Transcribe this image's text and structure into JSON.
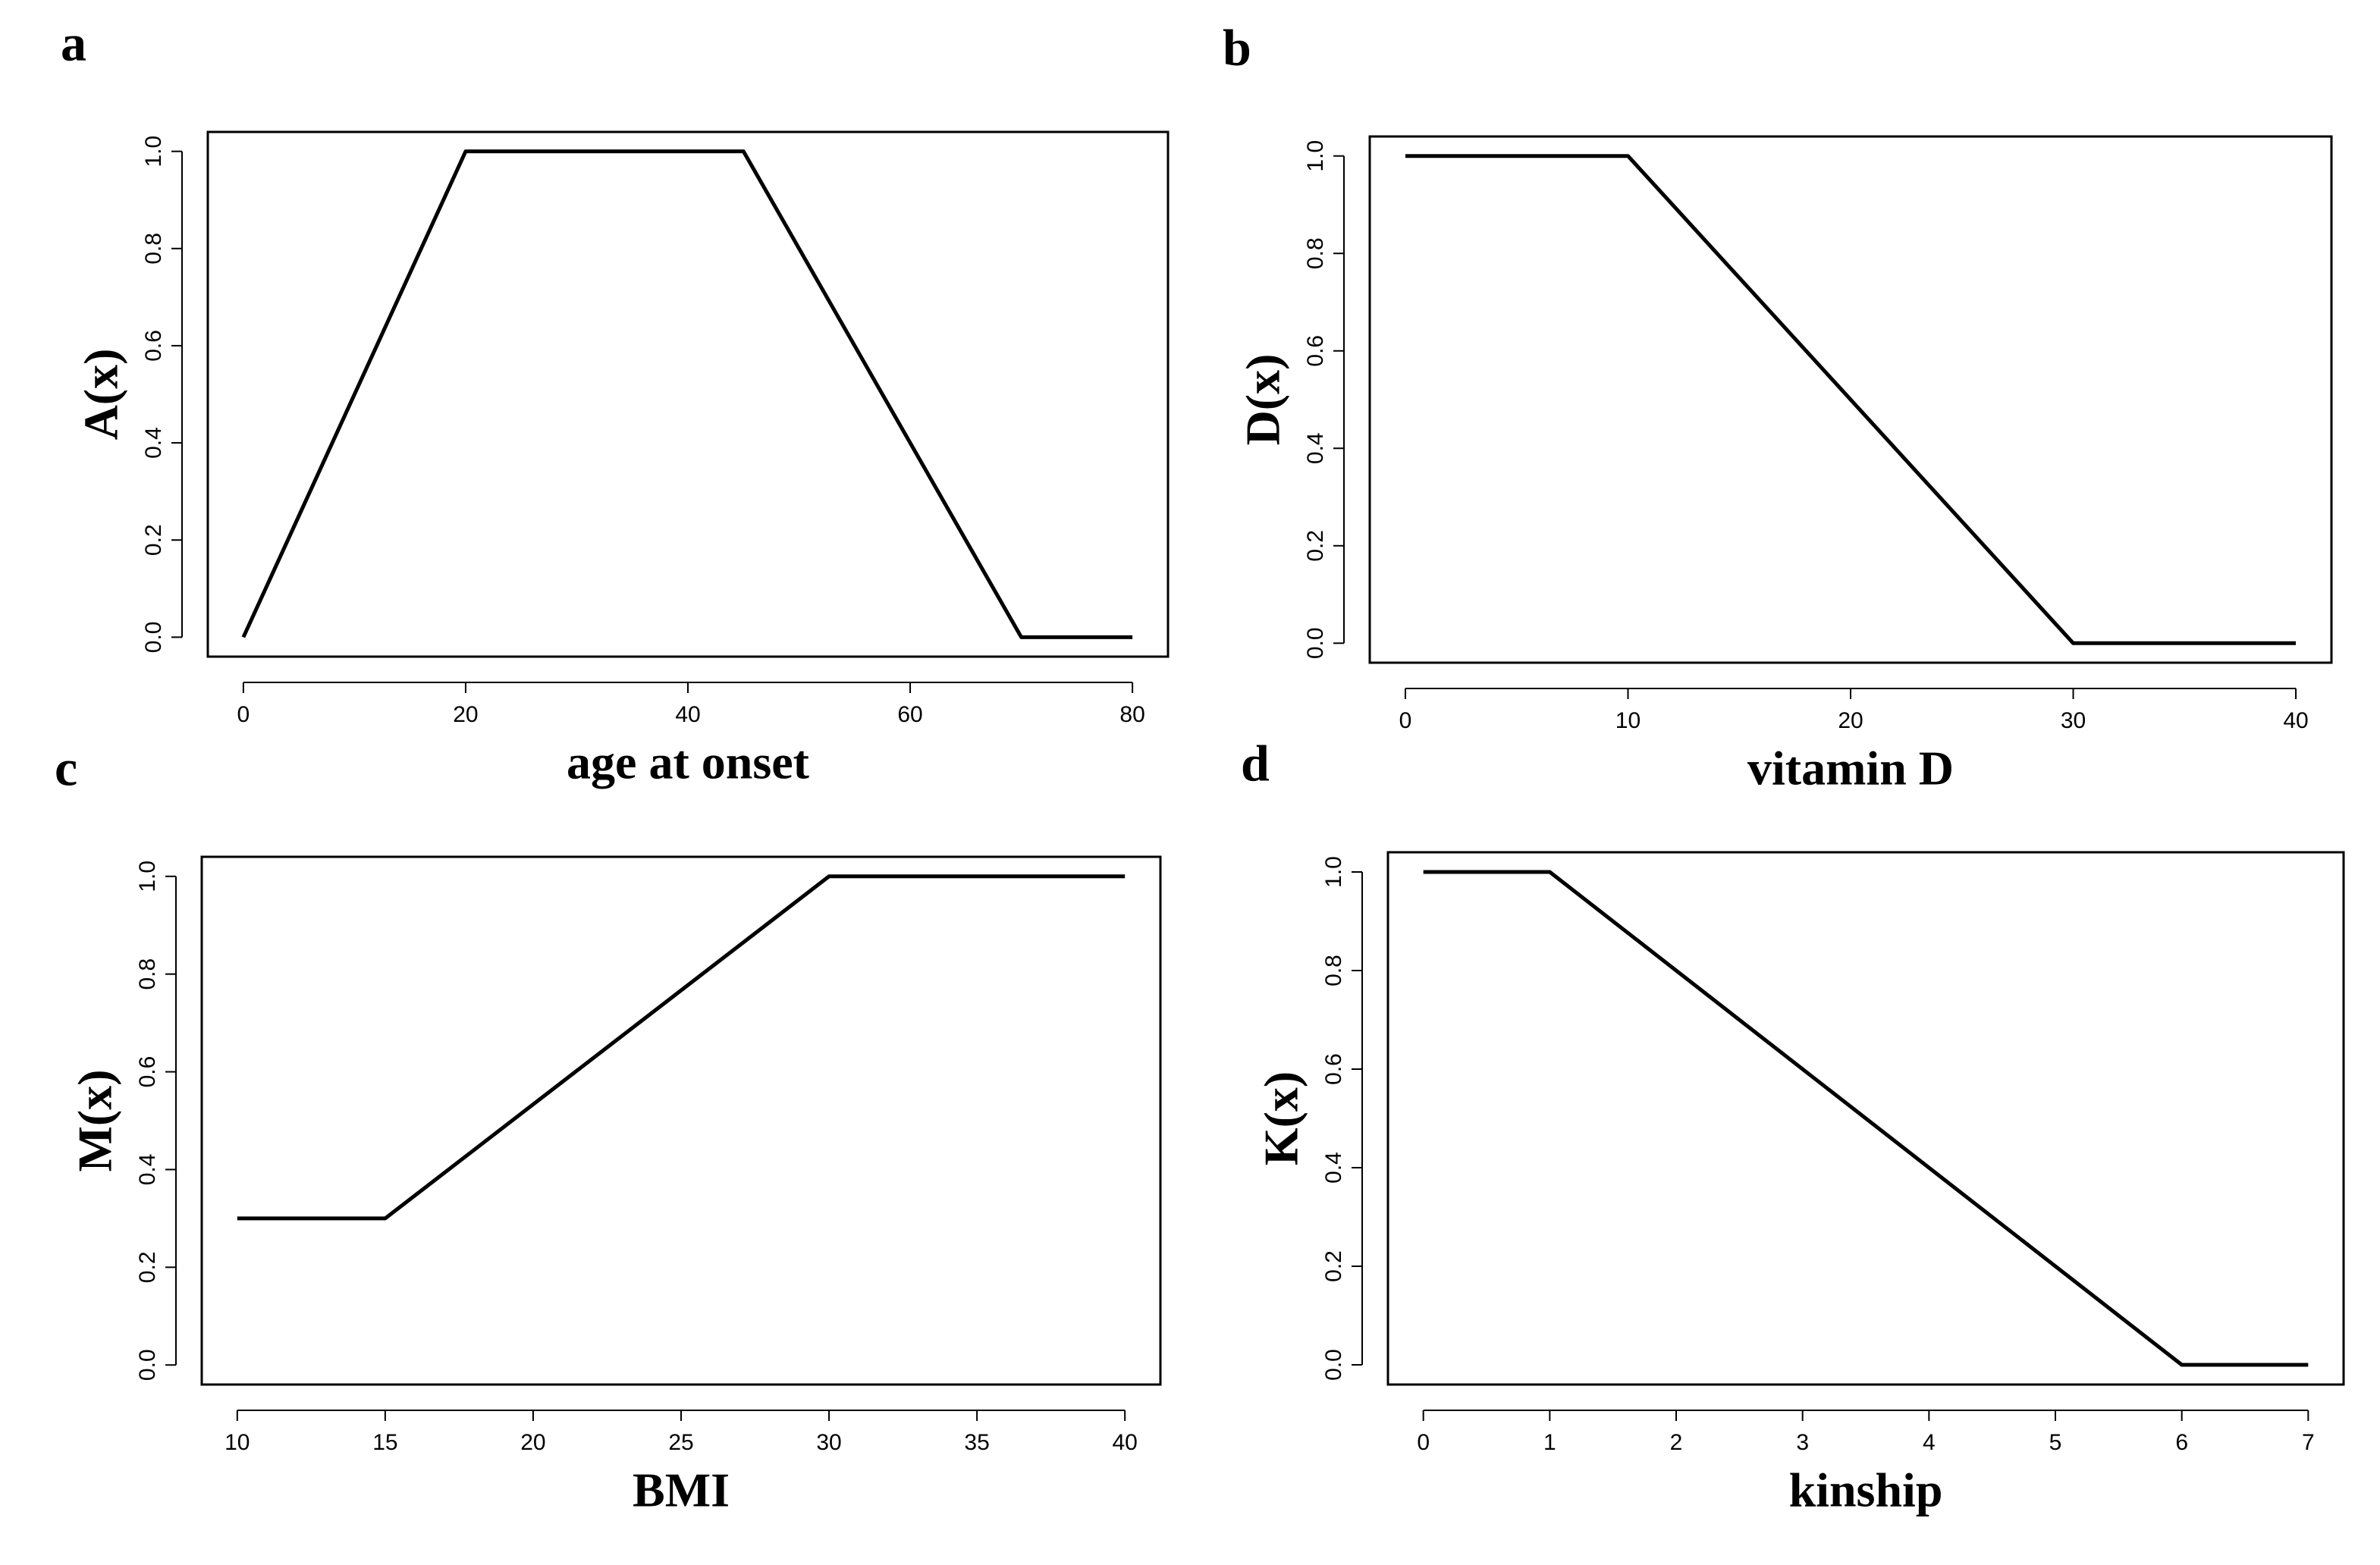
{
  "chart_data": [
    {
      "type": "line",
      "panel": "a",
      "xlabel": "age at onset",
      "ylabel": "A(x)",
      "x": [
        0,
        20,
        45,
        70,
        80
      ],
      "series": [
        {
          "color": "#000000",
          "values": [
            0,
            1,
            1,
            0,
            0
          ]
        }
      ],
      "xlim": [
        -3.2,
        83.2
      ],
      "ylim": [
        -0.04,
        1.04
      ],
      "xticks": [
        0,
        20,
        40,
        60,
        80
      ],
      "yticks": [
        {
          "value": 0,
          "label": "0.0"
        },
        0.2,
        0.4,
        0.6,
        0.8,
        {
          "value": 1,
          "label": "1.0"
        }
      ]
    },
    {
      "type": "line",
      "panel": "b",
      "xlabel": "vitamin D",
      "ylabel": "D(x)",
      "x": [
        0,
        10,
        30,
        40
      ],
      "series": [
        {
          "color": "#000000",
          "values": [
            1,
            1,
            0,
            0
          ]
        }
      ],
      "xlim": [
        -1.6,
        41.6
      ],
      "ylim": [
        -0.04,
        1.04
      ],
      "xticks": [
        0,
        10,
        20,
        30,
        40
      ],
      "yticks": [
        {
          "value": 0,
          "label": "0.0"
        },
        0.2,
        0.4,
        0.6,
        0.8,
        {
          "value": 1,
          "label": "1.0"
        }
      ]
    },
    {
      "type": "line",
      "panel": "c",
      "xlabel": "BMI",
      "ylabel": "M(x)",
      "x": [
        10,
        15,
        30,
        40
      ],
      "series": [
        {
          "color": "#000000",
          "values": [
            0.3,
            0.3,
            1,
            1
          ]
        }
      ],
      "xlim": [
        8.8,
        41.2
      ],
      "ylim": [
        -0.04,
        1.04
      ],
      "xticks": [
        10,
        15,
        20,
        25,
        30,
        35,
        40
      ],
      "yticks": [
        {
          "value": 0,
          "label": "0.0"
        },
        0.2,
        0.4,
        0.6,
        0.8,
        {
          "value": 1,
          "label": "1.0"
        }
      ]
    },
    {
      "type": "line",
      "panel": "d",
      "xlabel": "kinship",
      "ylabel": "K(x)",
      "x": [
        0,
        1,
        6,
        7
      ],
      "series": [
        {
          "color": "#000000",
          "values": [
            1,
            1,
            0,
            0
          ]
        }
      ],
      "xlim": [
        -0.28,
        7.28
      ],
      "ylim": [
        -0.04,
        1.04
      ],
      "xticks": [
        0,
        1,
        2,
        3,
        4,
        5,
        6,
        7
      ],
      "yticks": [
        {
          "value": 0,
          "label": "0.0"
        },
        0.2,
        0.4,
        0.6,
        0.8,
        {
          "value": 1,
          "label": "1.0"
        }
      ]
    }
  ]
}
